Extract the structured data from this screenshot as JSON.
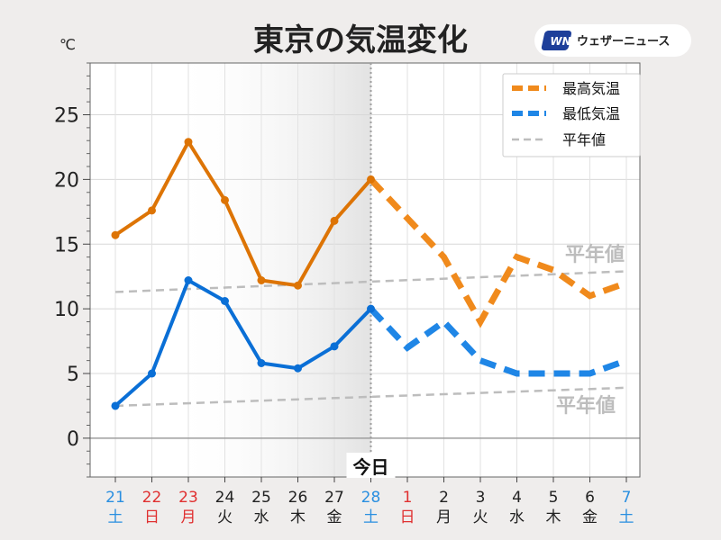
{
  "title": "東京の気温変化",
  "unit": "℃",
  "brand": {
    "logo": "WN",
    "name": "ウェザーニュース"
  },
  "today_label": "今日",
  "normal_label_high": "平年値",
  "normal_label_low": "平年値",
  "legend": {
    "position": "top-right",
    "items": [
      {
        "name": "最高気温",
        "color": "#f08a1c",
        "style": "dashed-thick"
      },
      {
        "name": "最低気温",
        "color": "#1f86e6",
        "style": "dashed-thick"
      },
      {
        "name": "平年値",
        "color": "#bdbdbd",
        "style": "dashed-thin"
      }
    ]
  },
  "colors": {
    "high_observed": "#dd7405",
    "high_forecast": "#f08a1c",
    "low_observed": "#0a6fd6",
    "low_forecast": "#1f86e6",
    "normal": "#bdbdbd",
    "sunday_holiday": "#e03030",
    "saturday": "#2a8fe0",
    "weekday": "#222222"
  },
  "chart_data": {
    "type": "line",
    "title": "東京の気温変化",
    "ylabel": "℃",
    "ylim": [
      -3,
      29
    ],
    "yticks": [
      0,
      5,
      10,
      15,
      20,
      25
    ],
    "grid": true,
    "categories": [
      {
        "day": "21",
        "dow": "土",
        "kind": "saturday"
      },
      {
        "day": "22",
        "dow": "日",
        "kind": "sunday_holiday"
      },
      {
        "day": "23",
        "dow": "月",
        "kind": "sunday_holiday"
      },
      {
        "day": "24",
        "dow": "火",
        "kind": "weekday"
      },
      {
        "day": "25",
        "dow": "水",
        "kind": "weekday"
      },
      {
        "day": "26",
        "dow": "木",
        "kind": "weekday"
      },
      {
        "day": "27",
        "dow": "金",
        "kind": "weekday"
      },
      {
        "day": "28",
        "dow": "土",
        "kind": "saturday"
      },
      {
        "day": "1",
        "dow": "日",
        "kind": "sunday_holiday"
      },
      {
        "day": "2",
        "dow": "月",
        "kind": "weekday"
      },
      {
        "day": "3",
        "dow": "火",
        "kind": "weekday"
      },
      {
        "day": "4",
        "dow": "水",
        "kind": "weekday"
      },
      {
        "day": "5",
        "dow": "木",
        "kind": "weekday"
      },
      {
        "day": "6",
        "dow": "金",
        "kind": "weekday"
      },
      {
        "day": "7",
        "dow": "土",
        "kind": "saturday"
      }
    ],
    "today_index": 7,
    "series": [
      {
        "name": "最高気温",
        "values": [
          15.7,
          17.6,
          22.9,
          18.4,
          12.2,
          11.8,
          16.8,
          20.0,
          17.0,
          14.0,
          9.0,
          14.0,
          13.0,
          11.0,
          12.0
        ]
      },
      {
        "name": "最低気温",
        "values": [
          2.5,
          5.0,
          12.2,
          10.6,
          5.8,
          5.4,
          7.1,
          10.0,
          7.0,
          9.0,
          6.0,
          5.0,
          5.0,
          5.0,
          6.0
        ]
      },
      {
        "name": "平年値",
        "values_high": [
          11.3,
          12.9
        ],
        "values_low": [
          2.5,
          3.9
        ]
      }
    ]
  }
}
